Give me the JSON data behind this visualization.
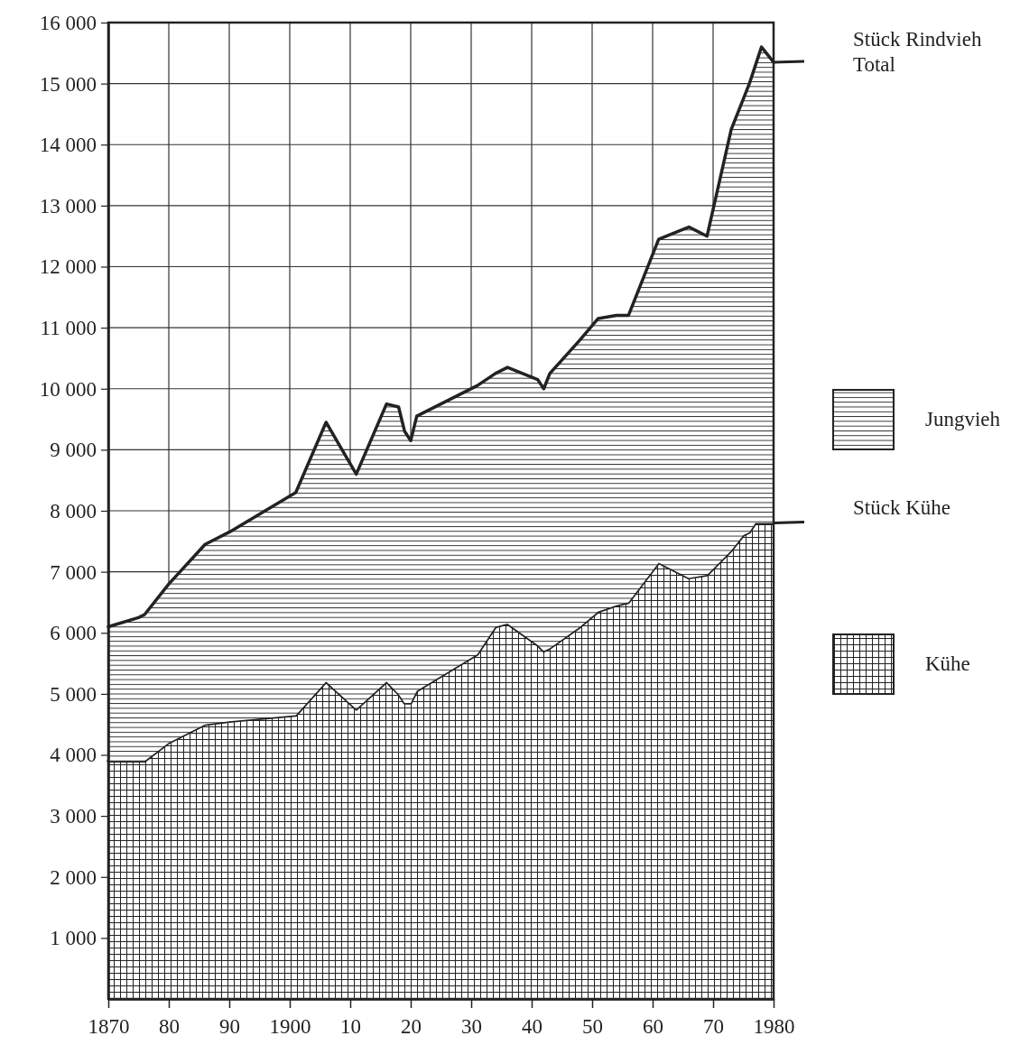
{
  "chart_data": {
    "type": "area",
    "stacked": true,
    "x": [
      1870,
      1875,
      1876,
      1880,
      1886,
      1890,
      1901,
      1906,
      1911,
      1916,
      1918,
      1919,
      1920,
      1921,
      1931,
      1934,
      1936,
      1941,
      1942,
      1943,
      1948,
      1951,
      1954,
      1956,
      1961,
      1966,
      1969,
      1973,
      1975,
      1976,
      1977,
      1978,
      1980
    ],
    "series": [
      {
        "name": "Kühe",
        "color": "#222222",
        "values": [
          3900,
          3900,
          3900,
          4200,
          4500,
          4550,
          4650,
          5200,
          4750,
          5200,
          5000,
          4850,
          4850,
          5050,
          5650,
          6100,
          6150,
          5800,
          5700,
          5750,
          6100,
          6350,
          6450,
          6500,
          7150,
          6900,
          6950,
          7350,
          7600,
          7650,
          7800,
          7800,
          7800
        ]
      },
      {
        "name": "Jungvieh",
        "color": "#222222",
        "values": [
          2200,
          2350,
          2400,
          2600,
          2950,
          3100,
          3650,
          4250,
          3850,
          4550,
          4700,
          4450,
          4300,
          4500,
          4400,
          4150,
          4200,
          4350,
          4300,
          4500,
          4700,
          4800,
          4750,
          4700,
          5300,
          5750,
          5550,
          6900,
          7150,
          7350,
          7500,
          7800,
          7550
        ]
      }
    ],
    "xlim": [
      1870,
      1980
    ],
    "xticks": [
      1870,
      {
        "value": 1880,
        "label": "80"
      },
      {
        "value": 1890,
        "label": "90"
      },
      1900,
      {
        "value": 1910,
        "label": "10"
      },
      {
        "value": 1920,
        "label": "20"
      },
      {
        "value": 1930,
        "label": "30"
      },
      {
        "value": 1940,
        "label": "40"
      },
      {
        "value": 1950,
        "label": "50"
      },
      {
        "value": 1960,
        "label": "60"
      },
      {
        "value": 1970,
        "label": "70"
      },
      1980
    ],
    "ylim": [
      0,
      16000
    ],
    "yticks": [
      {
        "value": 1000,
        "label": "1 000"
      },
      {
        "value": 2000,
        "label": "2 000"
      },
      {
        "value": 3000,
        "label": "3 000"
      },
      {
        "value": 4000,
        "label": "4 000"
      },
      {
        "value": 5000,
        "label": "5 000"
      },
      {
        "value": 6000,
        "label": "6 000"
      },
      {
        "value": 7000,
        "label": "7 000"
      },
      {
        "value": 8000,
        "label": "8 000"
      },
      {
        "value": 9000,
        "label": "9 000"
      },
      {
        "value": 10000,
        "label": "10 000"
      },
      {
        "value": 11000,
        "label": "11 000"
      },
      {
        "value": 12000,
        "label": "12 000"
      },
      {
        "value": 13000,
        "label": "13 000"
      },
      {
        "value": 14000,
        "label": "14 000"
      },
      {
        "value": 15000,
        "label": "15 000"
      },
      {
        "value": 16000,
        "label": "16 000"
      }
    ],
    "grid": true,
    "legend": "right",
    "annotations": [
      "Stück Rindvieh Total",
      "Stück Kühe"
    ]
  }
}
